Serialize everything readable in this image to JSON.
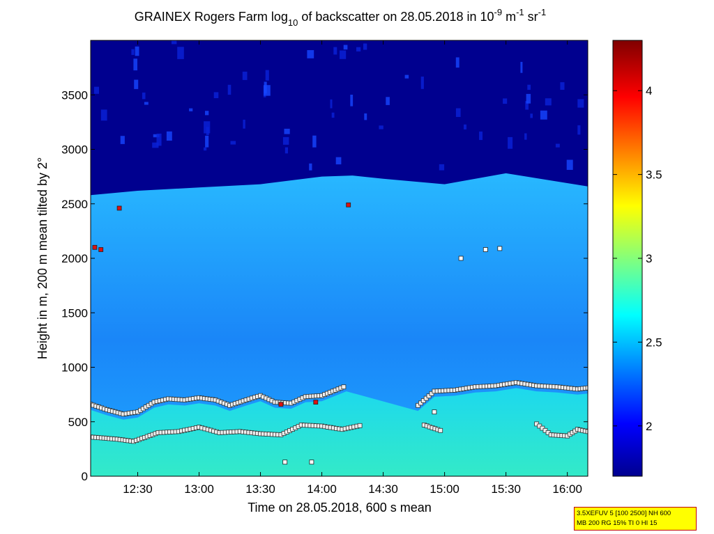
{
  "chart_data": {
    "type": "heatmap",
    "title_parts": {
      "prefix": "GRAINEX Rogers Farm log",
      "sub": "10",
      "middle": " of backscatter on 28.05.2018 in 10",
      "sup1": "-9",
      "unit1": " m",
      "sup2": "-1",
      "unit2": " sr",
      "sup3": "-1"
    },
    "xlabel": "Time on 28.05.2018, 600 s mean",
    "ylabel": "Height in m, 200 m mean tilted by 2°",
    "x_range": [
      "12:07",
      "16:10"
    ],
    "x_ticks": [
      "12:30",
      "13:00",
      "13:30",
      "14:00",
      "14:30",
      "15:00",
      "15:30",
      "16:00"
    ],
    "y_range": [
      0,
      4000
    ],
    "y_ticks": [
      "0",
      "500",
      "1000",
      "1500",
      "2000",
      "2500",
      "3000",
      "3500"
    ],
    "colorbar": {
      "range": [
        1.7,
        4.3
      ],
      "ticks": [
        "2",
        "2.5",
        "3",
        "3.5",
        "4"
      ],
      "colormap": "jet"
    },
    "layers": {
      "mixed_layer_top_height_m": [
        {
          "time": "12:07",
          "height": 2580
        },
        {
          "time": "12:30",
          "height": 2620
        },
        {
          "time": "13:00",
          "height": 2650
        },
        {
          "time": "13:30",
          "height": 2680
        },
        {
          "time": "14:00",
          "height": 2750
        },
        {
          "time": "14:15",
          "height": 2760
        },
        {
          "time": "14:30",
          "height": 2730
        },
        {
          "time": "15:00",
          "height": 2680
        },
        {
          "time": "15:30",
          "height": 2780
        },
        {
          "time": "16:10",
          "height": 2660
        }
      ],
      "surface_aerosol_log10_backscatter": 2.75,
      "boundary_layer_log10_backscatter": 2.25,
      "free_troposphere_log10_backscatter": 1.75
    },
    "series": [
      {
        "marker_color": "#eeeeee",
        "points": [
          {
            "time": "12:07",
            "height": 660
          },
          {
            "time": "12:15",
            "height": 610
          },
          {
            "time": "12:23",
            "height": 570
          },
          {
            "time": "12:30",
            "height": 590
          },
          {
            "time": "12:38",
            "height": 680
          },
          {
            "time": "12:45",
            "height": 710
          },
          {
            "time": "12:53",
            "height": 700
          },
          {
            "time": "13:00",
            "height": 720
          },
          {
            "time": "13:08",
            "height": 700
          },
          {
            "time": "13:15",
            "height": 650
          },
          {
            "time": "13:23",
            "height": 700
          },
          {
            "time": "13:30",
            "height": 740
          },
          {
            "time": "13:37",
            "height": 680
          },
          {
            "time": "13:45",
            "height": 670
          },
          {
            "time": "13:52",
            "height": 730
          },
          {
            "time": "14:00",
            "height": 740
          },
          {
            "time": "14:12",
            "height": 830
          },
          {
            "time": "14:47",
            "height": 650
          },
          {
            "time": "14:55",
            "height": 780
          },
          {
            "time": "15:05",
            "height": 790
          },
          {
            "time": "15:15",
            "height": 820
          },
          {
            "time": "15:25",
            "height": 830
          },
          {
            "time": "15:35",
            "height": 860
          },
          {
            "time": "15:45",
            "height": 830
          },
          {
            "time": "15:55",
            "height": 820
          },
          {
            "time": "16:05",
            "height": 800
          },
          {
            "time": "16:10",
            "height": 810
          }
        ]
      },
      {
        "marker_color": "#eeeeee",
        "points": [
          {
            "time": "12:07",
            "height": 360
          },
          {
            "time": "12:20",
            "height": 340
          },
          {
            "time": "12:28",
            "height": 320
          },
          {
            "time": "12:40",
            "height": 400
          },
          {
            "time": "12:50",
            "height": 410
          },
          {
            "time": "13:00",
            "height": 450
          },
          {
            "time": "13:10",
            "height": 400
          },
          {
            "time": "13:20",
            "height": 410
          },
          {
            "time": "13:30",
            "height": 390
          },
          {
            "time": "13:40",
            "height": 380
          },
          {
            "time": "13:50",
            "height": 470
          },
          {
            "time": "14:00",
            "height": 460
          },
          {
            "time": "14:10",
            "height": 430
          },
          {
            "time": "14:20",
            "height": 470
          },
          {
            "time": "14:35",
            "height": 460
          },
          {
            "time": "14:50",
            "height": 470
          },
          {
            "time": "14:58",
            "height": 420
          }
        ]
      },
      {
        "marker_color": "#eeeeee",
        "points": [
          {
            "time": "15:45",
            "height": 480
          },
          {
            "time": "15:52",
            "height": 380
          },
          {
            "time": "16:00",
            "height": 370
          },
          {
            "time": "16:05",
            "height": 430
          },
          {
            "time": "16:10",
            "height": 410
          }
        ]
      },
      {
        "marker_color": "#dd1111",
        "points": [
          {
            "time": "12:09",
            "height": 2100
          },
          {
            "time": "12:12",
            "height": 2080
          },
          {
            "time": "12:21",
            "height": 2460
          },
          {
            "time": "13:40",
            "height": 660
          },
          {
            "time": "13:57",
            "height": 680
          },
          {
            "time": "14:13",
            "height": 2490
          }
        ]
      },
      {
        "marker_color": "#ffffff",
        "points": [
          {
            "time": "15:08",
            "height": 2000
          },
          {
            "time": "15:20",
            "height": 2080
          },
          {
            "time": "15:27",
            "height": 2090
          },
          {
            "time": "14:55",
            "height": 590
          },
          {
            "time": "13:42",
            "height": 130
          },
          {
            "time": "13:55",
            "height": 130
          }
        ]
      }
    ]
  },
  "param_box": {
    "line1": "3.5XEFUV 5 [100 2500] NH 600",
    "line2": "MB 200 RG 15% TI 0 HI 15"
  }
}
